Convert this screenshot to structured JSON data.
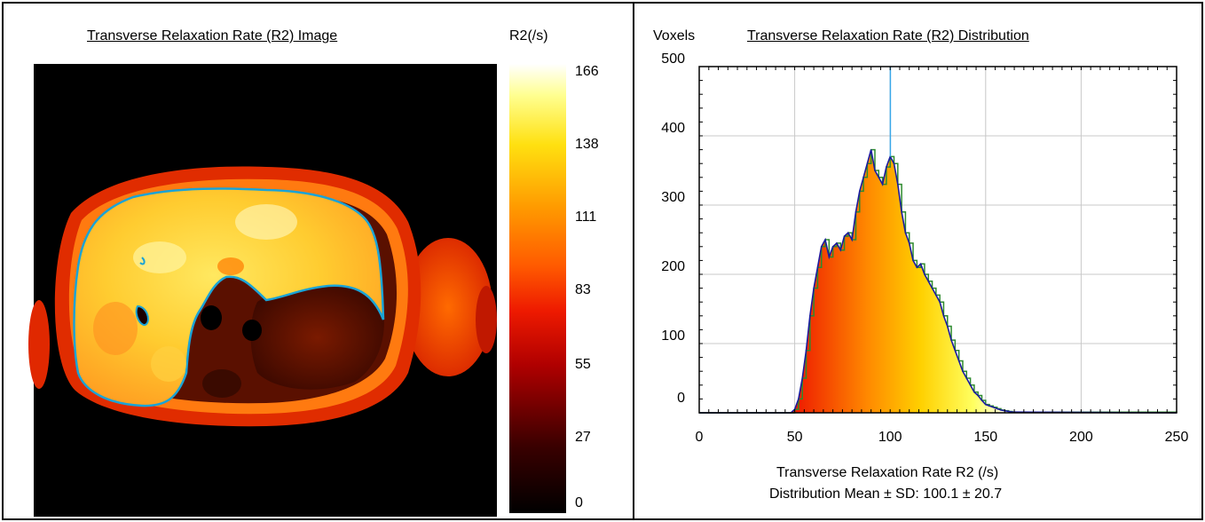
{
  "left_panel": {
    "title": "Transverse Relaxation Rate (R2) Image",
    "colorbar_label": "R2(/s)",
    "colorbar_ticks": [
      "166",
      "138",
      "111",
      "83",
      "55",
      "27",
      "0"
    ]
  },
  "right_panel": {
    "y_label": "Voxels",
    "title": "Transverse Relaxation Rate (R2) Distribution",
    "x_label": "Transverse Relaxation Rate R2 (/s)",
    "summary": "Distribution Mean ± SD: 100.1 ± 20.7"
  },
  "colors": {
    "roi_outline": "#1aa3d6",
    "mean_line": "#3aa8e8",
    "hist_outline": "#1a1aa0",
    "hist_outline_alt": "#2e8b2e"
  },
  "chart_data": {
    "type": "area",
    "title": "Transverse Relaxation Rate (R2) Distribution",
    "xlabel": "Transverse Relaxation Rate R2 (/s)",
    "ylabel": "Voxels",
    "xlim": [
      0,
      250
    ],
    "ylim": [
      0,
      500
    ],
    "x_ticks": [
      0,
      50,
      100,
      150,
      200,
      250
    ],
    "y_ticks": [
      0,
      100,
      200,
      300,
      400,
      500
    ],
    "grid": true,
    "mean": 100.1,
    "sd": 20.7,
    "x": [
      0,
      48,
      50,
      52,
      54,
      56,
      58,
      60,
      62,
      64,
      66,
      68,
      70,
      72,
      74,
      76,
      78,
      80,
      82,
      84,
      86,
      88,
      90,
      92,
      94,
      96,
      98,
      100,
      102,
      104,
      106,
      108,
      110,
      112,
      114,
      116,
      118,
      120,
      122,
      124,
      126,
      128,
      130,
      132,
      134,
      136,
      138,
      140,
      142,
      144,
      146,
      148,
      150,
      152,
      154,
      156,
      158,
      160,
      162,
      164,
      250
    ],
    "y": [
      0,
      0,
      5,
      20,
      50,
      90,
      140,
      180,
      210,
      240,
      250,
      225,
      240,
      245,
      235,
      255,
      260,
      250,
      290,
      320,
      340,
      360,
      380,
      350,
      340,
      330,
      355,
      370,
      360,
      330,
      290,
      260,
      245,
      220,
      210,
      215,
      200,
      190,
      180,
      170,
      160,
      140,
      125,
      105,
      90,
      75,
      60,
      50,
      40,
      30,
      25,
      18,
      12,
      10,
      8,
      6,
      4,
      3,
      2,
      1,
      0
    ]
  }
}
